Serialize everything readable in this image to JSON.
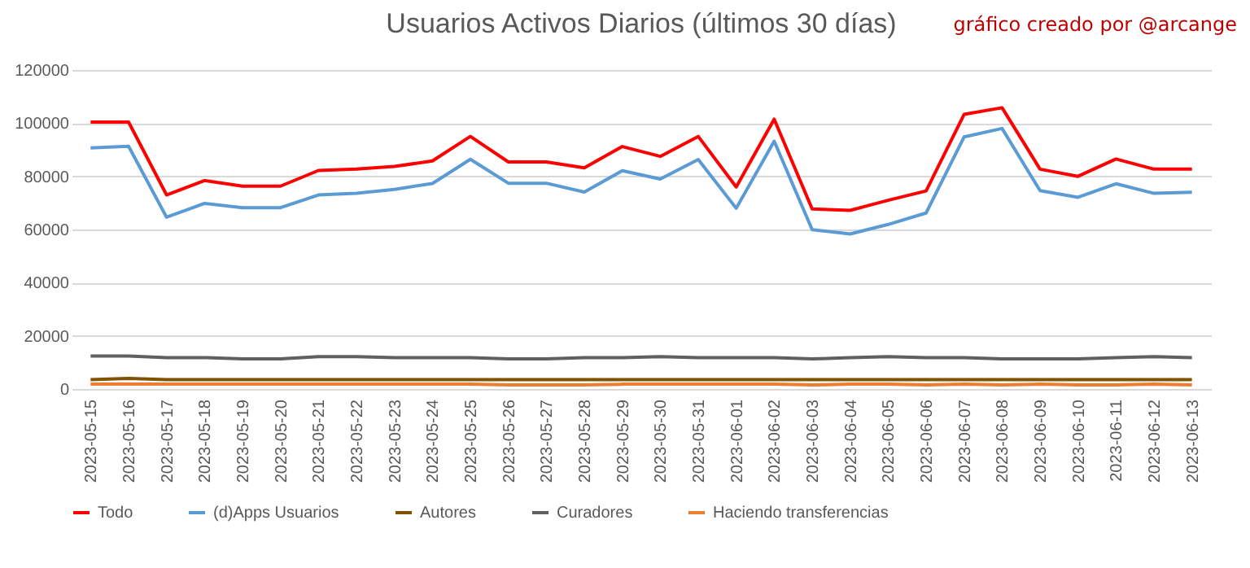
{
  "chart_data": {
    "type": "line",
    "title": "Usuarios Activos Diarios (últimos 30 días)",
    "annotations": [
      "gráfico creado por @arcange"
    ],
    "categories": [
      "2023-05-15",
      "2023-05-16",
      "2023-05-17",
      "2023-05-18",
      "2023-05-19",
      "2023-05-20",
      "2023-05-21",
      "2023-05-22",
      "2023-05-23",
      "2023-05-24",
      "2023-05-25",
      "2023-05-26",
      "2023-05-27",
      "2023-05-28",
      "2023-05-29",
      "2023-05-30",
      "2023-05-31",
      "2023-06-01",
      "2023-06-02",
      "2023-06-03",
      "2023-06-04",
      "2023-06-05",
      "2023-06-06",
      "2023-06-07",
      "2023-06-08",
      "2023-06-09",
      "2023-06-10",
      "2023-06-11",
      "2023-06-12",
      "2023-06-13"
    ],
    "series": [
      {
        "name": "Todo",
        "color": "#ff0000",
        "values": [
          100400,
          100400,
          73000,
          78400,
          76300,
          76300,
          82200,
          82700,
          83700,
          85800,
          95000,
          85400,
          85400,
          83200,
          91200,
          87500,
          95000,
          76000,
          101500,
          67700,
          67200,
          71000,
          74500,
          103300,
          105800,
          82700,
          80000,
          86500,
          82700,
          82700
        ]
      },
      {
        "name": "(d)Apps Usuarios",
        "color": "#5b9bd5",
        "values": [
          90700,
          91300,
          64600,
          69800,
          68200,
          68200,
          73000,
          73600,
          75100,
          77300,
          86400,
          77400,
          77400,
          74100,
          82100,
          79000,
          86300,
          68000,
          93200,
          59900,
          58300,
          61900,
          66200,
          94800,
          98000,
          74600,
          72100,
          77200,
          73600,
          74000
        ]
      },
      {
        "name": "Autores",
        "color": "#7f5200",
        "values": [
          3500,
          4000,
          3500,
          3500,
          3500,
          3500,
          3500,
          3500,
          3500,
          3500,
          3500,
          3500,
          3500,
          3500,
          3500,
          3500,
          3500,
          3500,
          3500,
          3500,
          3500,
          3500,
          3500,
          3500,
          3500,
          3500,
          3500,
          3500,
          3500,
          3500
        ]
      },
      {
        "name": "Curadores",
        "color": "#606060",
        "values": [
          12400,
          12400,
          11800,
          11800,
          11300,
          11300,
          12200,
          12200,
          11800,
          11800,
          11800,
          11300,
          11300,
          11800,
          11800,
          12200,
          11800,
          11800,
          11800,
          11300,
          11800,
          12200,
          11800,
          11800,
          11300,
          11300,
          11300,
          11800,
          12200,
          11800
        ]
      },
      {
        "name": "Haciendo transferencias",
        "color": "#ed7d31",
        "values": [
          1800,
          1800,
          1800,
          1800,
          1800,
          1800,
          1800,
          1800,
          1800,
          1800,
          1800,
          1500,
          1500,
          1500,
          1800,
          1800,
          1800,
          1800,
          1800,
          1500,
          1800,
          1800,
          1500,
          1800,
          1500,
          1800,
          1500,
          1500,
          1800,
          1500
        ]
      }
    ],
    "ylim": [
      0,
      120000
    ],
    "yticks": [
      0,
      20000,
      40000,
      60000,
      80000,
      100000,
      120000
    ],
    "grid": "y",
    "legend": "bottom",
    "marker": "none",
    "line_style": "solid"
  }
}
